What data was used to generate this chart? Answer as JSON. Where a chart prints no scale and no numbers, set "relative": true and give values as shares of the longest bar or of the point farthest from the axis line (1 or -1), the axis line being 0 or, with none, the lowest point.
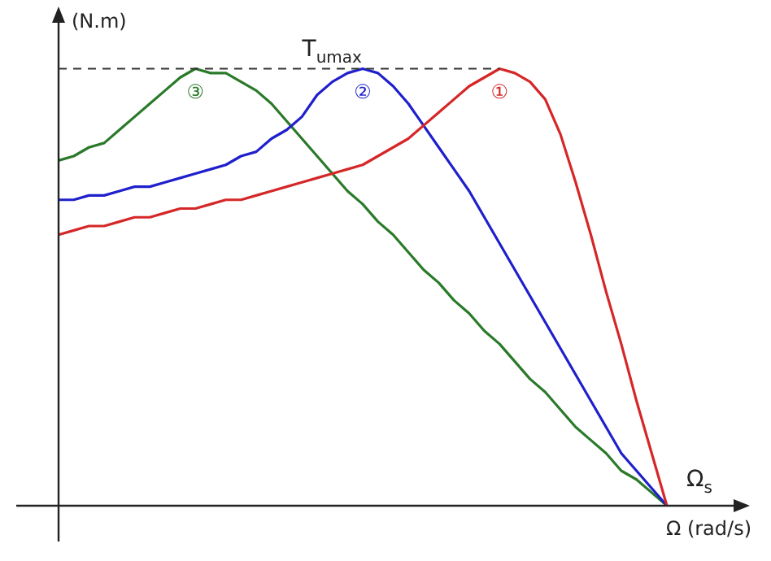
{
  "chart_data": {
    "type": "line",
    "relative": true,
    "legend": false,
    "marker": "none",
    "line_style": "solid",
    "ylabel": "(N.m)",
    "xlabel": "Ω (rad/s)",
    "annotations": [
      "Ω$_{s}$"
    ],
    "ref_lines": [
      {
        "axis": "y",
        "value": 1,
        "label": "T$_{umax}$",
        "line_style": "dashed",
        "color": "#333333"
      }
    ],
    "categories": [
      null,
      null,
      null,
      null,
      null,
      null,
      null,
      null,
      null,
      null,
      null,
      null,
      null,
      null,
      null,
      null,
      null,
      null,
      null,
      null,
      null,
      null,
      null,
      null,
      null,
      null,
      null,
      null,
      null,
      null,
      null,
      null,
      null,
      null,
      null,
      null,
      null,
      null,
      null,
      null,
      null
    ],
    "series": [
      {
        "name": "①",
        "color": "#d62728",
        "values": [
          0.62,
          0.63,
          0.64,
          0.64,
          0.65,
          0.66,
          0.66,
          0.67,
          0.68,
          0.68,
          0.69,
          0.7,
          0.7,
          0.71,
          0.72,
          0.73,
          0.74,
          0.75,
          0.76,
          0.77,
          0.78,
          0.8,
          0.82,
          0.84,
          0.87,
          0.9,
          0.93,
          0.96,
          0.98,
          1,
          0.99,
          0.97,
          0.93,
          0.85,
          0.74,
          0.62,
          0.49,
          0.37,
          0.24,
          0.12,
          0
        ]
      },
      {
        "name": "②",
        "color": "#1f1fcc",
        "values": [
          0.7,
          0.7,
          0.71,
          0.71,
          0.72,
          0.73,
          0.73,
          0.74,
          0.75,
          0.76,
          0.77,
          0.78,
          0.8,
          0.81,
          0.84,
          0.86,
          0.89,
          0.94,
          0.97,
          0.99,
          1,
          0.99,
          0.96,
          0.92,
          0.87,
          0.82,
          0.77,
          0.72,
          0.66,
          0.6,
          0.54,
          0.48,
          0.42,
          0.36,
          0.3,
          0.24,
          0.18,
          0.12,
          0.08,
          0.04,
          0
        ]
      },
      {
        "name": "③",
        "color": "#2a7a2a",
        "values": [
          0.79,
          0.8,
          0.82,
          0.83,
          0.86,
          0.89,
          0.92,
          0.95,
          0.98,
          1,
          0.99,
          0.99,
          0.97,
          0.95,
          0.92,
          0.88,
          0.84,
          0.8,
          0.76,
          0.72,
          0.69,
          0.65,
          0.62,
          0.58,
          0.54,
          0.51,
          0.47,
          0.44,
          0.4,
          0.37,
          0.33,
          0.29,
          0.26,
          0.22,
          0.18,
          0.15,
          0.12,
          0.08,
          0.06,
          0.03,
          0
        ]
      }
    ]
  }
}
